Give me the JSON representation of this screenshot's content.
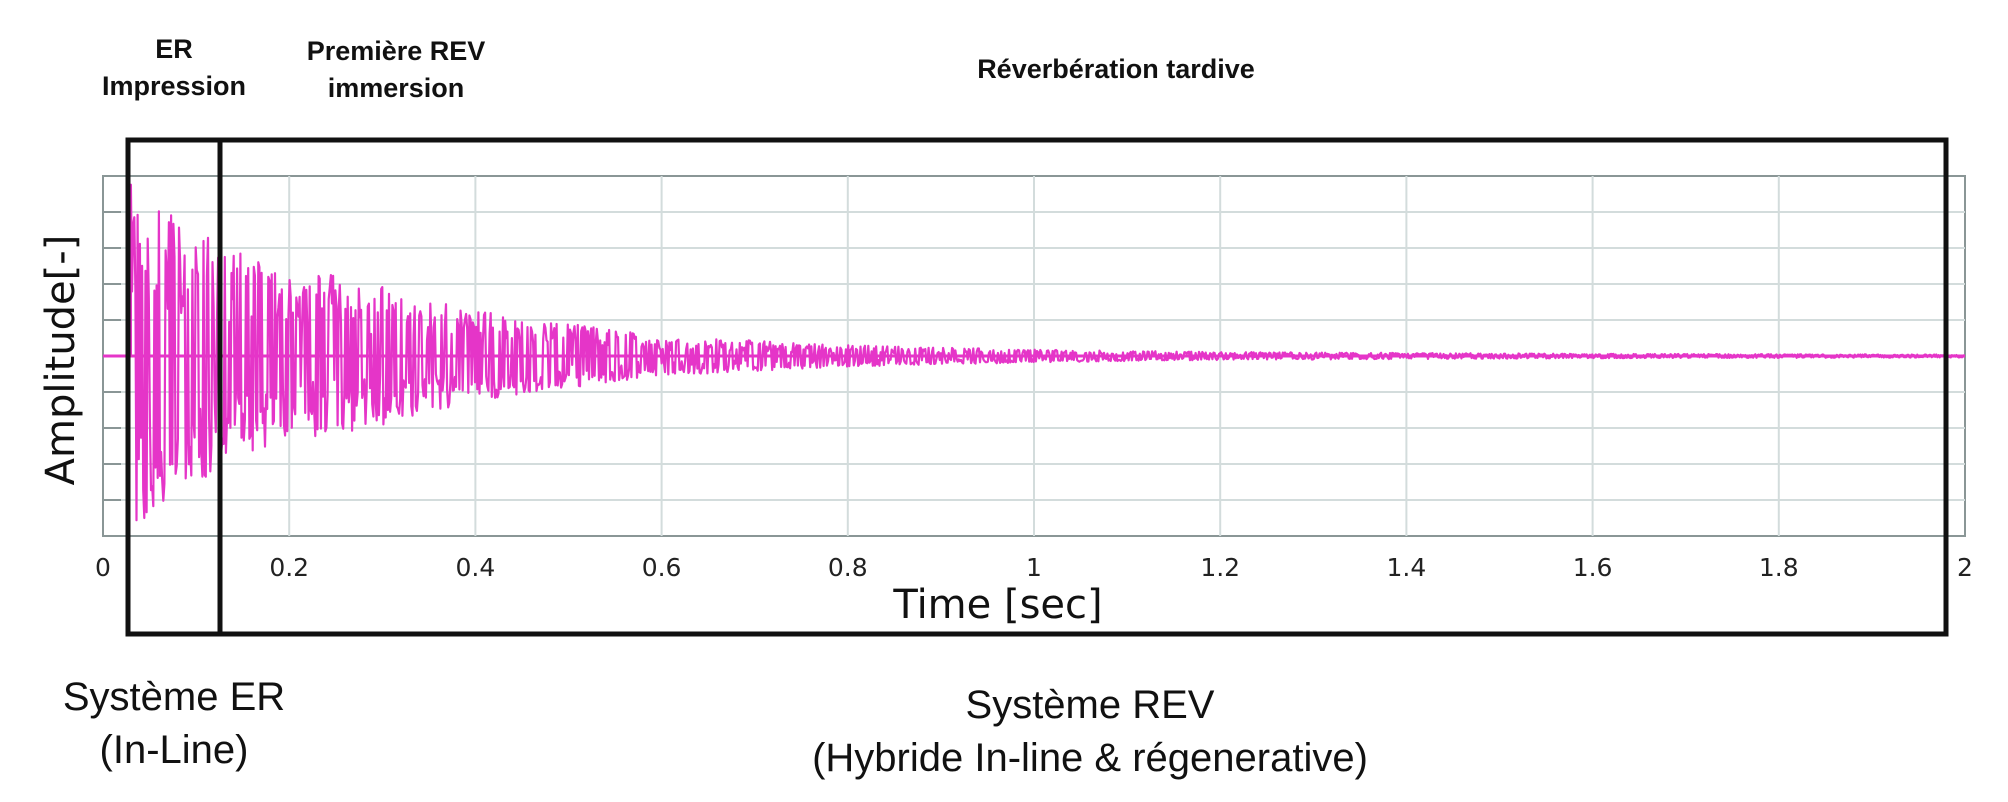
{
  "regions": {
    "er": {
      "line1": "ER",
      "line2": "Impression"
    },
    "premiere": {
      "line1": "Première REV",
      "line2": "immersion"
    },
    "tardive": {
      "label": "Réverbération tardive"
    }
  },
  "systems": {
    "er": {
      "line1": "Système ER",
      "line2": "(In-Line)"
    },
    "rev": {
      "line1": "Système REV",
      "line2": "(Hybride In-line & régenerative)"
    }
  },
  "colors": {
    "signal": "#e535c8",
    "grid": "#d3dcdc",
    "axis": "#8a9696",
    "frame": "#111111"
  },
  "chart_data": {
    "type": "line",
    "xlabel": "Time [sec]",
    "ylabel": "Amplitude[-]",
    "xlim": [
      0,
      2
    ],
    "x_ticks": [
      0,
      0.2,
      0.4,
      0.6,
      0.8,
      1,
      1.2,
      1.4,
      1.6,
      1.8,
      2
    ],
    "x_tick_labels": [
      "0",
      "0.2",
      "0.4",
      "0.6",
      "0.8",
      "1",
      "1.2",
      "1.4",
      "1.6",
      "1.8",
      "2"
    ],
    "ylim": [
      -1,
      1
    ],
    "y_gridlines": 10,
    "y_tick_labels_visible": false,
    "grid": true,
    "series": [
      {
        "signal": "room impulse response",
        "onset": 0.03,
        "peak_amplitude": 0.98,
        "envelope_points": [
          {
            "t": 0.03,
            "a": 0.98
          },
          {
            "t": 0.06,
            "a": 0.85
          },
          {
            "t": 0.1,
            "a": 0.72
          },
          {
            "t": 0.13,
            "a": 0.62
          },
          {
            "t": 0.2,
            "a": 0.45
          },
          {
            "t": 0.25,
            "a": 0.45
          },
          {
            "t": 0.4,
            "a": 0.25
          },
          {
            "t": 0.6,
            "a": 0.11
          },
          {
            "t": 0.8,
            "a": 0.06
          },
          {
            "t": 1.0,
            "a": 0.035
          },
          {
            "t": 1.2,
            "a": 0.022
          },
          {
            "t": 1.6,
            "a": 0.012
          },
          {
            "t": 2.0,
            "a": 0.008
          }
        ]
      }
    ],
    "boundaries": [
      {
        "t": 0.03,
        "marks": "start of ER region"
      },
      {
        "t": 0.128,
        "marks": "ER / REV boundary"
      },
      {
        "t": 1.98,
        "marks": "end of REV region"
      }
    ]
  }
}
